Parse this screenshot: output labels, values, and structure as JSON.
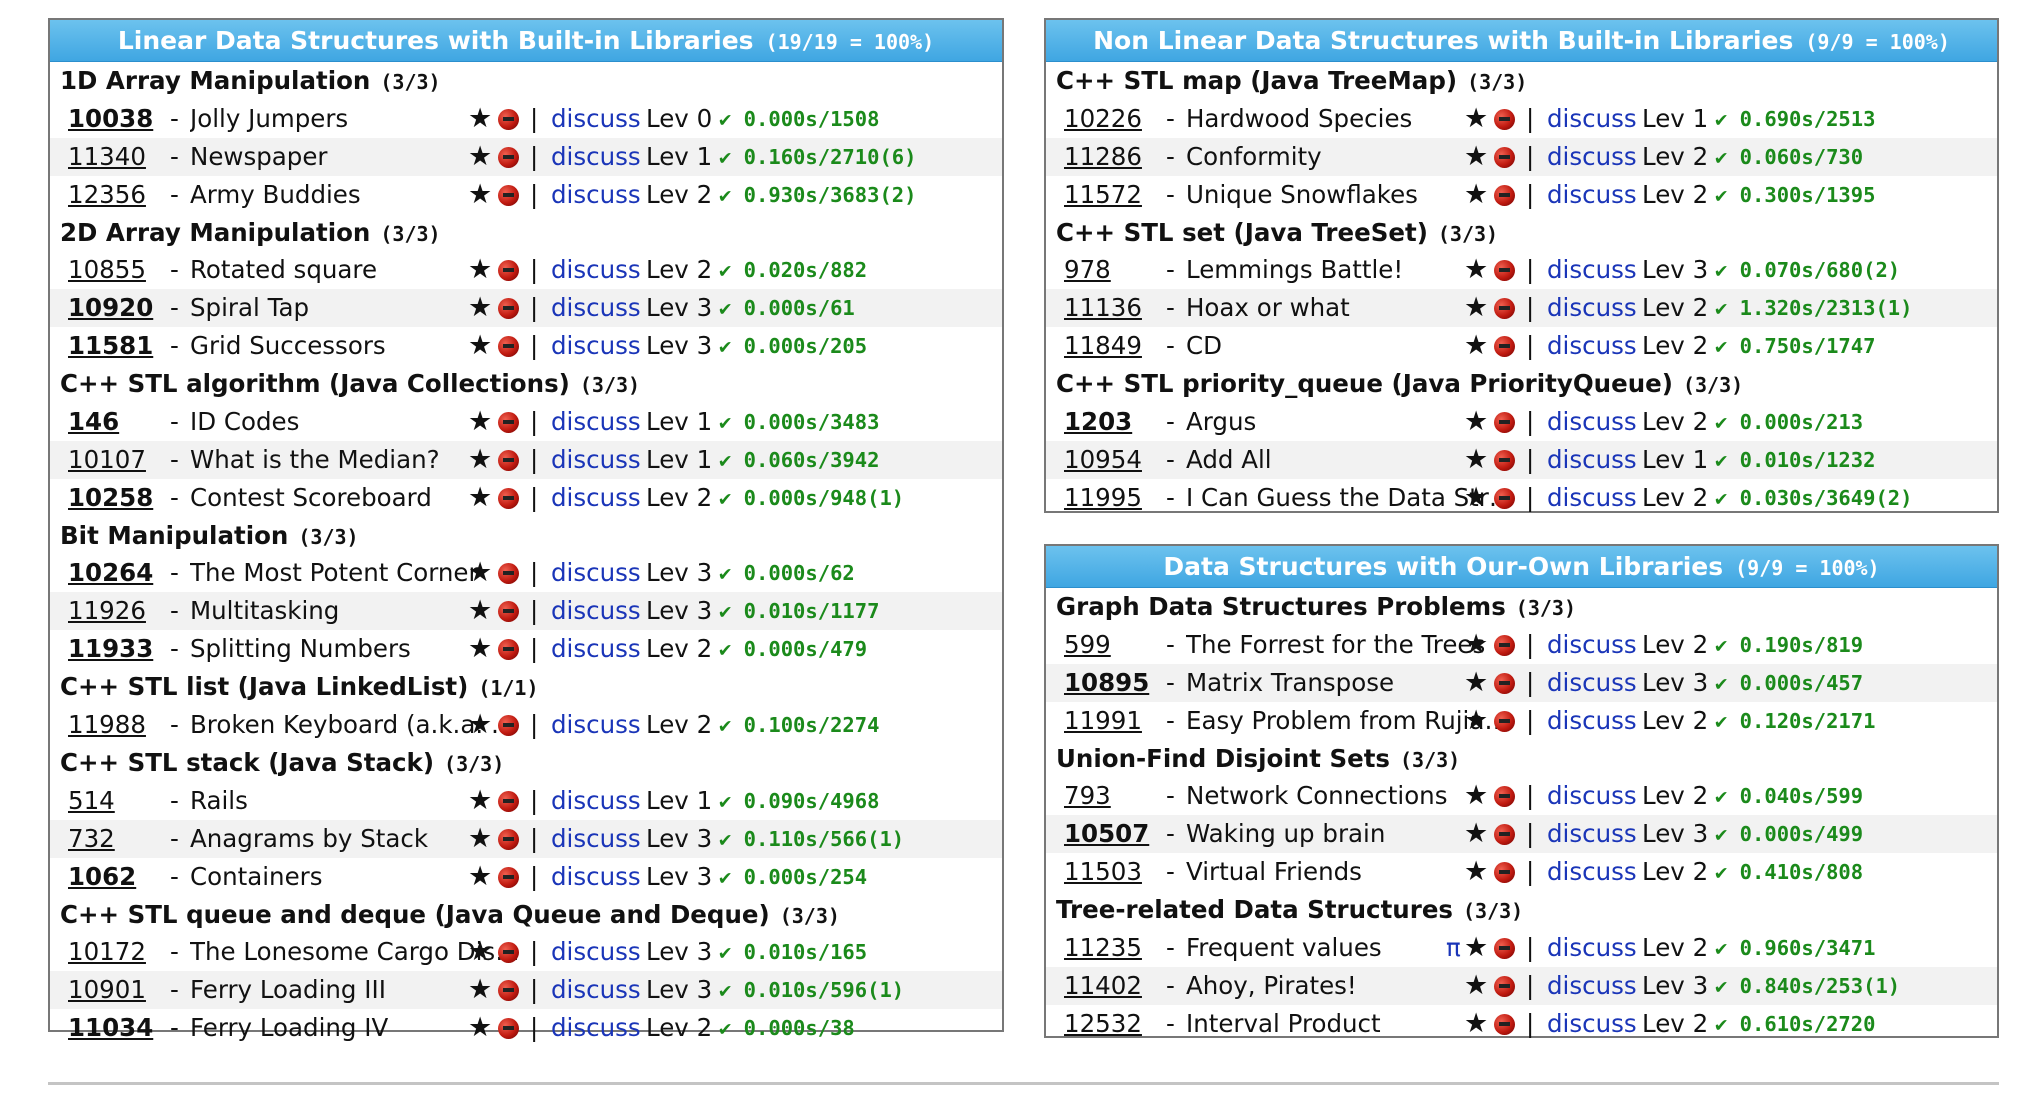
{
  "panels": [
    {
      "title": "Linear Data Structures with Built-in Libraries",
      "count": "(19/19 = 100%)",
      "groups": [
        {
          "name": "1D Array Manipulation",
          "count": "(3/3)",
          "rows": [
            {
              "id": "10038",
              "bold": true,
              "title": "Jolly Jumpers",
              "level": "Lev 0",
              "stat": "✔ 0.000s/1508"
            },
            {
              "id": "11340",
              "bold": false,
              "title": "Newspaper",
              "level": "Lev 1",
              "stat": "✔ 0.160s/2710(6)"
            },
            {
              "id": "12356",
              "bold": false,
              "title": "Army Buddies",
              "level": "Lev 2",
              "stat": "✔ 0.930s/3683(2)"
            }
          ]
        },
        {
          "name": "2D Array Manipulation",
          "count": "(3/3)",
          "rows": [
            {
              "id": "10855",
              "bold": false,
              "title": "Rotated square",
              "level": "Lev 2",
              "stat": "✔ 0.020s/882"
            },
            {
              "id": "10920",
              "bold": true,
              "title": "Spiral Tap",
              "level": "Lev 3",
              "stat": "✔ 0.000s/61"
            },
            {
              "id": "11581",
              "bold": true,
              "title": "Grid Successors",
              "level": "Lev 3",
              "stat": "✔ 0.000s/205"
            }
          ]
        },
        {
          "name": "C++ STL algorithm (Java Collections)",
          "count": "(3/3)",
          "rows": [
            {
              "id": "146",
              "bold": true,
              "title": "ID Codes",
              "level": "Lev 1",
              "stat": "✔ 0.000s/3483"
            },
            {
              "id": "10107",
              "bold": false,
              "title": "What is the Median?",
              "level": "Lev 1",
              "stat": "✔ 0.060s/3942"
            },
            {
              "id": "10258",
              "bold": true,
              "title": "Contest Scoreboard",
              "level": "Lev 2",
              "stat": "✔ 0.000s/948(1)"
            }
          ]
        },
        {
          "name": "Bit Manipulation",
          "count": "(3/3)",
          "rows": [
            {
              "id": "10264",
              "bold": true,
              "title": "The Most Potent Corner",
              "level": "Lev 3",
              "stat": "✔ 0.000s/62"
            },
            {
              "id": "11926",
              "bold": false,
              "title": "Multitasking",
              "level": "Lev 3",
              "stat": "✔ 0.010s/1177"
            },
            {
              "id": "11933",
              "bold": true,
              "title": "Splitting Numbers",
              "level": "Lev 2",
              "stat": "✔ 0.000s/479"
            }
          ]
        },
        {
          "name": "C++ STL list (Java LinkedList)",
          "count": "(1/1)",
          "rows": [
            {
              "id": "11988",
              "bold": false,
              "title": "Broken Keyboard (a.k.a. Beiju Text)",
              "level": "Lev 2",
              "stat": "✔ 0.100s/2274"
            }
          ]
        },
        {
          "name": "C++ STL stack (Java Stack)",
          "count": "(3/3)",
          "rows": [
            {
              "id": "514",
              "bold": false,
              "title": "Rails",
              "level": "Lev 1",
              "stat": "✔ 0.090s/4968"
            },
            {
              "id": "732",
              "bold": false,
              "title": "Anagrams by Stack",
              "level": "Lev 3",
              "stat": "✔ 0.110s/566(1)"
            },
            {
              "id": "1062",
              "bold": true,
              "title": "Containers",
              "level": "Lev 3",
              "stat": "✔ 0.000s/254"
            }
          ]
        },
        {
          "name": "C++ STL queue and deque (Java Queue and Deque)",
          "count": "(3/3)",
          "rows": [
            {
              "id": "10172",
              "bold": false,
              "title": "The Lonesome Cargo Distributor",
              "level": "Lev 3",
              "stat": "✔ 0.010s/165"
            },
            {
              "id": "10901",
              "bold": false,
              "title": "Ferry Loading III",
              "level": "Lev 3",
              "stat": "✔ 0.010s/596(1)"
            },
            {
              "id": "11034",
              "bold": true,
              "title": "Ferry Loading IV",
              "level": "Lev 2",
              "stat": "✔ 0.000s/38"
            }
          ]
        }
      ]
    },
    {
      "title": "Non Linear Data Structures with Built-in Libraries",
      "count": "(9/9 = 100%)",
      "groups": [
        {
          "name": "C++ STL map (Java TreeMap)",
          "count": "(3/3)",
          "rows": [
            {
              "id": "10226",
              "bold": false,
              "title": "Hardwood Species",
              "level": "Lev 1",
              "stat": "✔ 0.690s/2513"
            },
            {
              "id": "11286",
              "bold": false,
              "title": "Conformity",
              "level": "Lev 2",
              "stat": "✔ 0.060s/730"
            },
            {
              "id": "11572",
              "bold": false,
              "title": "Unique Snowflakes",
              "level": "Lev 2",
              "stat": "✔ 0.300s/1395"
            }
          ]
        },
        {
          "name": "C++ STL set (Java TreeSet)",
          "count": "(3/3)",
          "rows": [
            {
              "id": "978",
              "bold": false,
              "title": "Lemmings Battle!",
              "level": "Lev 3",
              "stat": "✔ 0.070s/680(2)"
            },
            {
              "id": "11136",
              "bold": false,
              "title": "Hoax or what",
              "level": "Lev 2",
              "stat": "✔ 1.320s/2313(1)"
            },
            {
              "id": "11849",
              "bold": false,
              "title": "CD",
              "level": "Lev 2",
              "stat": "✔ 0.750s/1747"
            }
          ]
        },
        {
          "name": "C++ STL priority_queue (Java PriorityQueue)",
          "count": "(3/3)",
          "rows": [
            {
              "id": "1203",
              "bold": true,
              "title": "Argus",
              "level": "Lev 2",
              "stat": "✔ 0.000s/213"
            },
            {
              "id": "10954",
              "bold": false,
              "title": "Add All",
              "level": "Lev 1",
              "stat": "✔ 0.010s/1232"
            },
            {
              "id": "11995",
              "bold": false,
              "title": "I Can Guess the Data Structure!",
              "level": "Lev 2",
              "stat": "✔ 0.030s/3649(2)"
            }
          ]
        }
      ]
    },
    {
      "title": "Data Structures with Our-Own Libraries",
      "count": "(9/9 = 100%)",
      "groups": [
        {
          "name": "Graph Data Structures Problems",
          "count": "(3/3)",
          "rows": [
            {
              "id": "599",
              "bold": false,
              "title": "The Forrest for the Trees",
              "level": "Lev 2",
              "stat": "✔ 0.190s/819"
            },
            {
              "id": "10895",
              "bold": true,
              "title": "Matrix Transpose",
              "level": "Lev 3",
              "stat": "✔ 0.000s/457"
            },
            {
              "id": "11991",
              "bold": false,
              "title": "Easy Problem from Rujia Liu?",
              "level": "Lev 2",
              "stat": "✔ 0.120s/2171"
            }
          ]
        },
        {
          "name": "Union-Find Disjoint Sets",
          "count": "(3/3)",
          "rows": [
            {
              "id": "793",
              "bold": false,
              "title": "Network Connections",
              "level": "Lev 2",
              "stat": "✔ 0.040s/599"
            },
            {
              "id": "10507",
              "bold": true,
              "title": "Waking up brain",
              "level": "Lev 3",
              "stat": "✔ 0.000s/499"
            },
            {
              "id": "11503",
              "bold": false,
              "title": "Virtual Friends",
              "level": "Lev 2",
              "stat": "✔ 0.410s/808"
            }
          ]
        },
        {
          "name": "Tree-related Data Structures",
          "count": "(3/3)",
          "rows": [
            {
              "id": "11235",
              "bold": false,
              "title": "Frequent values",
              "level": "Lev 2",
              "stat": "✔ 0.960s/3471",
              "pi": "π"
            },
            {
              "id": "11402",
              "bold": false,
              "title": "Ahoy, Pirates!",
              "level": "Lev 3",
              "stat": "✔ 0.840s/253(1)"
            },
            {
              "id": "12532",
              "bold": false,
              "title": "Interval Product",
              "level": "Lev 2",
              "stat": "✔ 0.610s/2720"
            }
          ]
        }
      ]
    }
  ],
  "labels": {
    "star": "★",
    "pipe": "|",
    "discuss": "discuss",
    "dash": "-"
  },
  "icons": {
    "star": "star-icon",
    "bug": "bug-icon"
  },
  "colors": {
    "header": "#46a9e3",
    "link": "#1a35b8",
    "status": "#1b8a1b"
  }
}
